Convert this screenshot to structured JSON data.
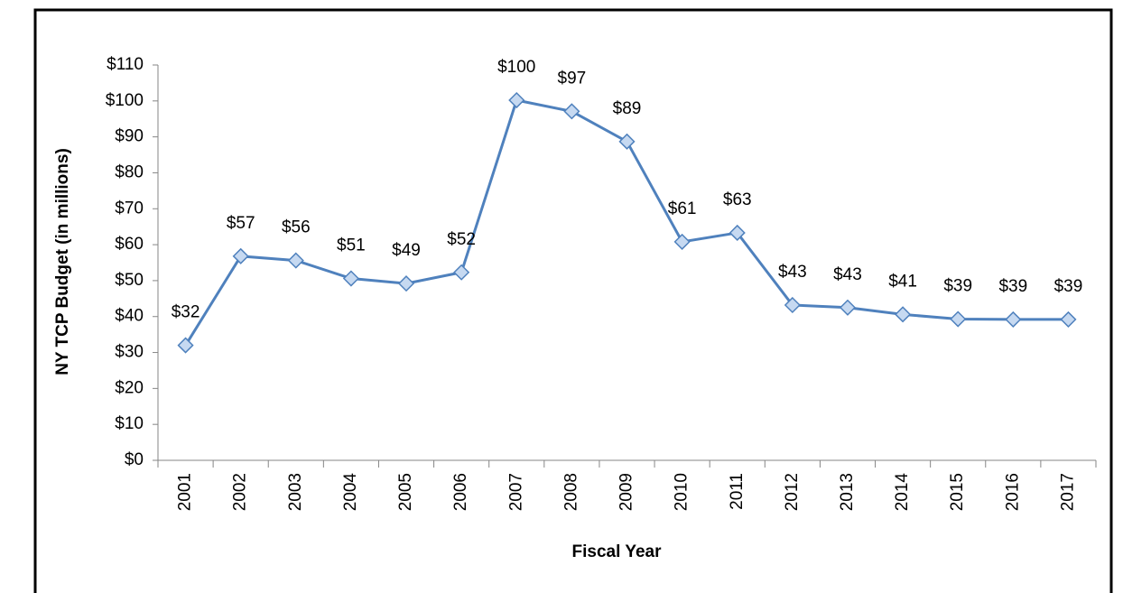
{
  "chart_data": {
    "type": "line",
    "x_label": "Fiscal Year",
    "y_label": "NY TCP Budget (in millions)",
    "categories": [
      "2001",
      "2002",
      "2003",
      "2004",
      "2005",
      "2006",
      "2007",
      "2008",
      "2009",
      "2010",
      "2011",
      "2012",
      "2013",
      "2014",
      "2015",
      "2016",
      "2017"
    ],
    "series": [
      {
        "name": "NY TCP Budget",
        "color": "#4f81bd",
        "marker_fill": "#c6d9f1",
        "values": [
          32,
          56.8,
          55.6,
          50.6,
          49.2,
          52.3,
          100.2,
          97.1,
          88.7,
          60.8,
          63.3,
          43.2,
          42.5,
          40.6,
          39.3,
          39.2,
          39.2
        ],
        "value_labels": [
          "$32",
          "$57",
          "$56",
          "$51",
          "$49",
          "$52",
          "$100",
          "$97",
          "$89",
          "$61",
          "$63",
          "$43",
          "$43",
          "$41",
          "$39",
          "$39",
          "$39"
        ]
      }
    ],
    "ylim": [
      0,
      110
    ],
    "yticks": [
      {
        "value": 0,
        "label": "$0"
      },
      {
        "value": 10,
        "label": "$10"
      },
      {
        "value": 20,
        "label": "$20"
      },
      {
        "value": 30,
        "label": "$30"
      },
      {
        "value": 40,
        "label": "$40"
      },
      {
        "value": 50,
        "label": "$50"
      },
      {
        "value": 60,
        "label": "$60"
      },
      {
        "value": 70,
        "label": "$70"
      },
      {
        "value": 80,
        "label": "$80"
      },
      {
        "value": 90,
        "label": "$90"
      },
      {
        "value": 100,
        "label": "$100"
      },
      {
        "value": 110,
        "label": "$110"
      }
    ],
    "grid": false
  }
}
